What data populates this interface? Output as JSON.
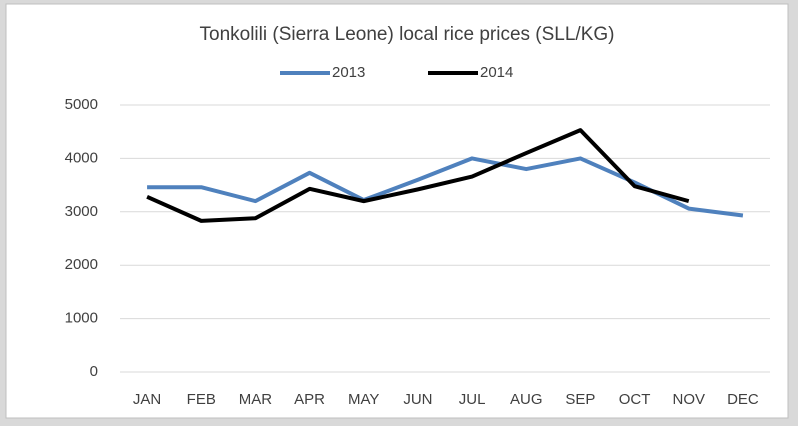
{
  "chart_data": {
    "type": "line",
    "title": "Tonkolili (Sierra Leone) local rice prices (SLL/KG)",
    "categories": [
      "JAN",
      "FEB",
      "MAR",
      "APR",
      "MAY",
      "JUN",
      "JUL",
      "AUG",
      "SEP",
      "OCT",
      "NOV",
      "DEC"
    ],
    "series": [
      {
        "name": "2013",
        "color": "#4f81bd",
        "values": [
          3460,
          3460,
          3200,
          3730,
          3220,
          3600,
          4000,
          3800,
          4000,
          3550,
          3060,
          2930
        ]
      },
      {
        "name": "2014",
        "color": "#000000",
        "values": [
          3280,
          2830,
          2880,
          3430,
          3200,
          3420,
          3660,
          4100,
          4530,
          3480,
          3200,
          null
        ]
      }
    ],
    "ylim": [
      0,
      5000
    ],
    "yticks": [
      0,
      1000,
      2000,
      3000,
      4000,
      5000
    ],
    "grid": true,
    "legend": "top"
  }
}
